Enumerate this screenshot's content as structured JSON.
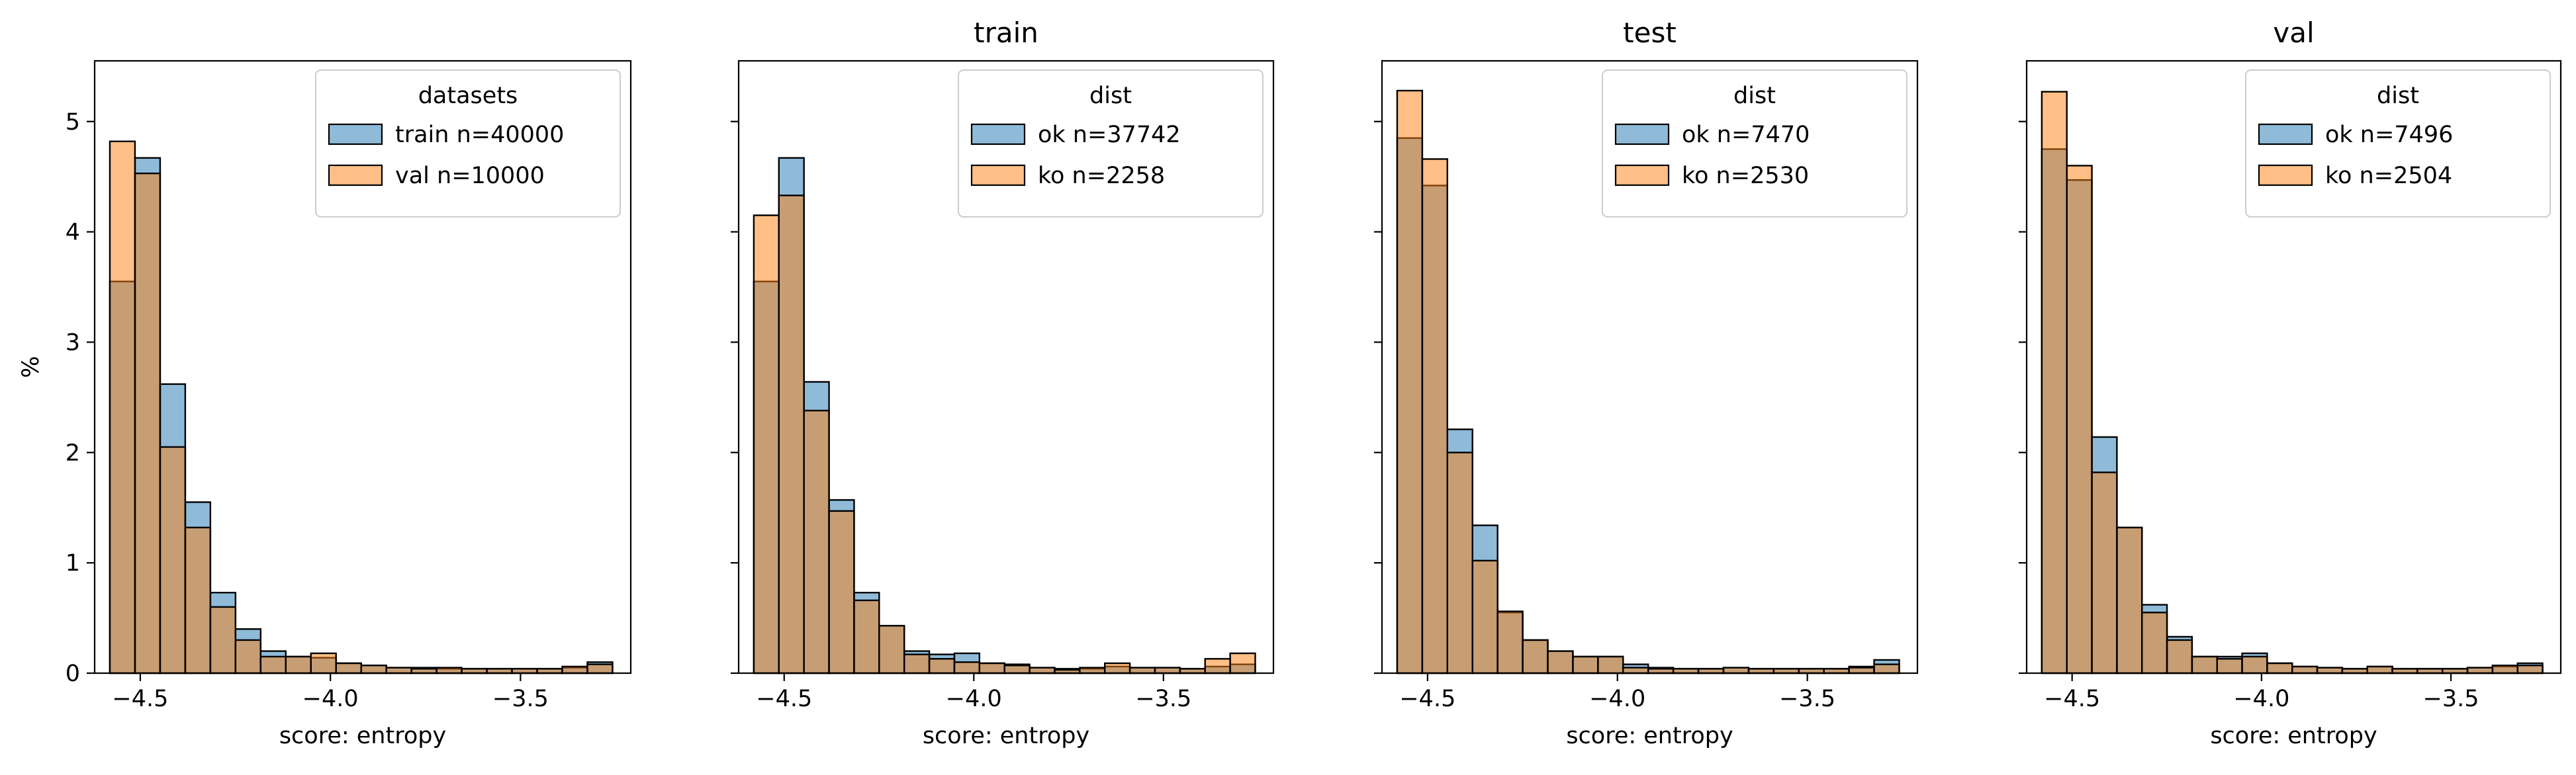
{
  "chart_data": [
    {
      "type": "histogram",
      "title": "",
      "xlabel": "score: entropy",
      "ylabel": "%",
      "xlim": [
        -4.62,
        -3.21
      ],
      "ylim": [
        0,
        5.55
      ],
      "xticks": [
        -4.5,
        -4.0,
        -3.5
      ],
      "xtick_labels": [
        "−4.5",
        "−4.0",
        "−3.5"
      ],
      "yticks": [
        0,
        1,
        2,
        3,
        4,
        5
      ],
      "ytick_labels": [
        "0",
        "1",
        "2",
        "3",
        "4",
        "5"
      ],
      "bin_start": -4.58,
      "bin_width": 0.0661,
      "legend": {
        "title": "datasets",
        "placement": "top-right"
      },
      "series": [
        {
          "name": "train n=40000",
          "color": "#1f77b4",
          "values": [
            3.55,
            4.67,
            2.62,
            1.55,
            0.73,
            0.4,
            0.2,
            0.15,
            0.14,
            0.09,
            0.07,
            0.05,
            0.05,
            0.04,
            0.04,
            0.04,
            0.04,
            0.04,
            0.05,
            0.1
          ]
        },
        {
          "name": "val n=10000",
          "color": "#ff7f0e",
          "values": [
            4.82,
            4.53,
            2.05,
            1.32,
            0.6,
            0.3,
            0.15,
            0.15,
            0.18,
            0.09,
            0.07,
            0.05,
            0.04,
            0.05,
            0.04,
            0.04,
            0.04,
            0.04,
            0.06,
            0.08
          ]
        }
      ]
    },
    {
      "type": "histogram",
      "title": "train",
      "xlabel": "score: entropy",
      "ylabel": "",
      "xlim": [
        -4.62,
        -3.21
      ],
      "ylim": [
        0,
        5.55
      ],
      "xticks": [
        -4.5,
        -4.0,
        -3.5
      ],
      "xtick_labels": [
        "−4.5",
        "−4.0",
        "−3.5"
      ],
      "yticks": [
        0,
        1,
        2,
        3,
        4,
        5
      ],
      "ytick_labels": [],
      "bin_start": -4.58,
      "bin_width": 0.0661,
      "legend": {
        "title": "dist",
        "placement": "top-right"
      },
      "series": [
        {
          "name": "ok n=37742",
          "color": "#1f77b4",
          "values": [
            3.55,
            4.67,
            2.64,
            1.57,
            0.73,
            0.43,
            0.2,
            0.17,
            0.18,
            0.09,
            0.08,
            0.05,
            0.04,
            0.04,
            0.06,
            0.05,
            0.05,
            0.04,
            0.06,
            0.08
          ]
        },
        {
          "name": "ko n=2258",
          "color": "#ff7f0e",
          "values": [
            4.15,
            4.33,
            2.38,
            1.47,
            0.66,
            0.43,
            0.17,
            0.13,
            0.1,
            0.09,
            0.07,
            0.05,
            0.03,
            0.05,
            0.09,
            0.05,
            0.05,
            0.04,
            0.13,
            0.18
          ]
        }
      ]
    },
    {
      "type": "histogram",
      "title": "test",
      "xlabel": "score: entropy",
      "ylabel": "",
      "xlim": [
        -4.62,
        -3.21
      ],
      "ylim": [
        0,
        5.55
      ],
      "xticks": [
        -4.5,
        -4.0,
        -3.5
      ],
      "xtick_labels": [
        "−4.5",
        "−4.0",
        "−3.5"
      ],
      "yticks": [
        0,
        1,
        2,
        3,
        4,
        5
      ],
      "ytick_labels": [],
      "bin_start": -4.58,
      "bin_width": 0.0661,
      "legend": {
        "title": "dist",
        "placement": "top-right"
      },
      "series": [
        {
          "name": "ok n=7470",
          "color": "#1f77b4",
          "values": [
            4.85,
            4.42,
            2.21,
            1.34,
            0.55,
            0.3,
            0.2,
            0.15,
            0.15,
            0.08,
            0.05,
            0.04,
            0.04,
            0.05,
            0.04,
            0.04,
            0.04,
            0.04,
            0.06,
            0.12
          ]
        },
        {
          "name": "ko n=2530",
          "color": "#ff7f0e",
          "values": [
            5.28,
            4.66,
            2.0,
            1.02,
            0.56,
            0.3,
            0.2,
            0.15,
            0.15,
            0.05,
            0.04,
            0.04,
            0.04,
            0.05,
            0.04,
            0.04,
            0.04,
            0.04,
            0.05,
            0.08
          ]
        }
      ]
    },
    {
      "type": "histogram",
      "title": "val",
      "xlabel": "score: entropy",
      "ylabel": "",
      "xlim": [
        -4.62,
        -3.21
      ],
      "ylim": [
        0,
        5.55
      ],
      "xticks": [
        -4.5,
        -4.0,
        -3.5
      ],
      "xtick_labels": [
        "−4.5",
        "−4.0",
        "−3.5"
      ],
      "yticks": [
        0,
        1,
        2,
        3,
        4,
        5
      ],
      "ytick_labels": [],
      "bin_start": -4.58,
      "bin_width": 0.0661,
      "legend": {
        "title": "dist",
        "placement": "top-right"
      },
      "series": [
        {
          "name": "ok n=7496",
          "color": "#1f77b4",
          "values": [
            4.75,
            4.47,
            2.14,
            1.32,
            0.62,
            0.33,
            0.15,
            0.15,
            0.18,
            0.09,
            0.06,
            0.05,
            0.04,
            0.06,
            0.04,
            0.04,
            0.04,
            0.05,
            0.06,
            0.09
          ]
        },
        {
          "name": "ko n=2504",
          "color": "#ff7f0e",
          "values": [
            5.27,
            4.6,
            1.82,
            1.32,
            0.55,
            0.3,
            0.15,
            0.13,
            0.15,
            0.09,
            0.06,
            0.05,
            0.04,
            0.06,
            0.04,
            0.04,
            0.04,
            0.05,
            0.07,
            0.07
          ]
        }
      ]
    }
  ]
}
